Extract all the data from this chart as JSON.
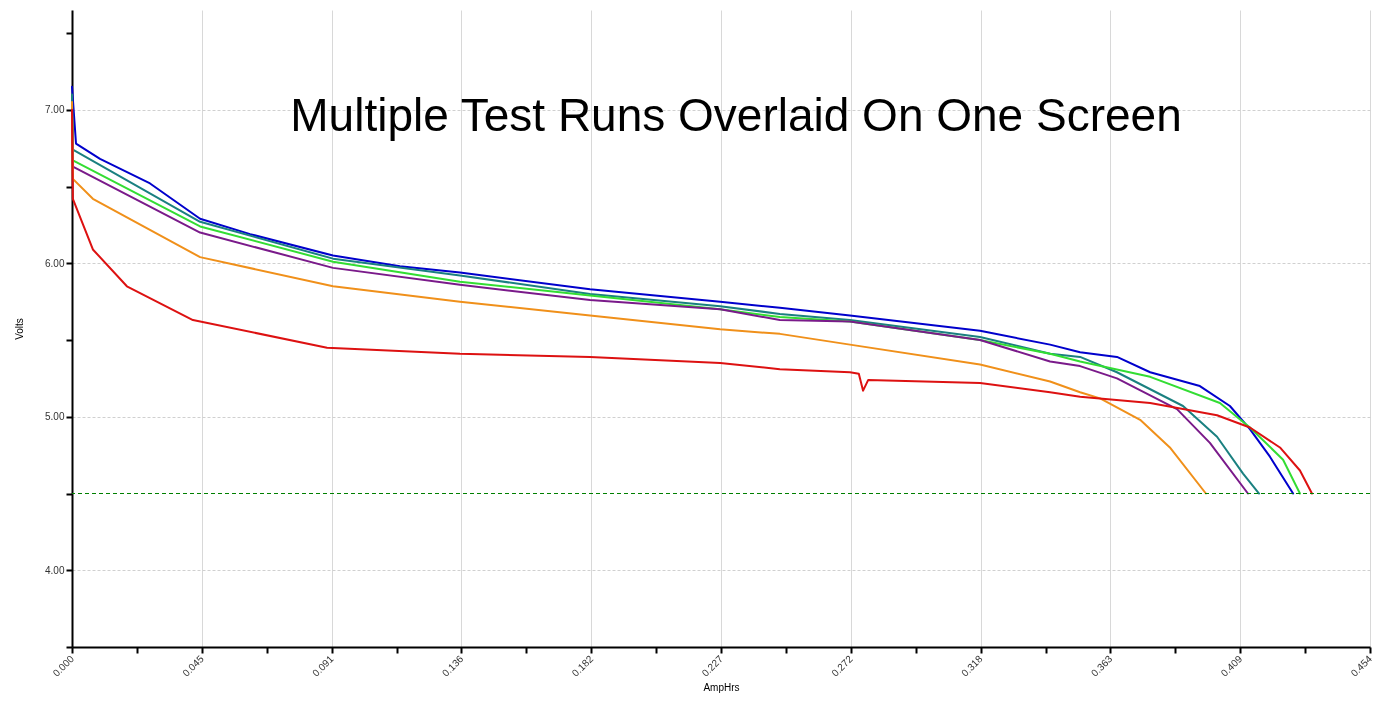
{
  "chart_data": {
    "type": "line",
    "title": "Multiple Test Runs Overlaid On One Screen",
    "xlabel": "AmpHrs",
    "ylabel": "Volts",
    "xlim": [
      0,
      0.454
    ],
    "ylim": [
      3.5,
      7.65
    ],
    "xticks": [
      {
        "value": 0,
        "label": "0.000"
      },
      {
        "value": 0.0227,
        "label": null
      },
      {
        "value": 0.0454,
        "label": "0.045"
      },
      {
        "value": 0.0681,
        "label": null
      },
      {
        "value": 0.0908,
        "label": "0.091"
      },
      {
        "value": 0.1135,
        "label": null
      },
      {
        "value": 0.1362,
        "label": "0.136"
      },
      {
        "value": 0.1589,
        "label": null
      },
      {
        "value": 0.1816,
        "label": "0.182"
      },
      {
        "value": 0.2043,
        "label": null
      },
      {
        "value": 0.227,
        "label": "0.227"
      },
      {
        "value": 0.2497,
        "label": null
      },
      {
        "value": 0.2724,
        "label": "0.272"
      },
      {
        "value": 0.2951,
        "label": null
      },
      {
        "value": 0.3178,
        "label": "0.318"
      },
      {
        "value": 0.3405,
        "label": null
      },
      {
        "value": 0.3632,
        "label": "0.363"
      },
      {
        "value": 0.3859,
        "label": null
      },
      {
        "value": 0.4086,
        "label": "0.409"
      },
      {
        "value": 0.4313,
        "label": null
      },
      {
        "value": 0.454,
        "label": "0.454"
      }
    ],
    "yticks": [
      {
        "value": 3.5,
        "label": null
      },
      {
        "value": 4,
        "label": "4.00"
      },
      {
        "value": 4.5,
        "label": null
      },
      {
        "value": 5,
        "label": "5.00"
      },
      {
        "value": 5.5,
        "label": null
      },
      {
        "value": 6,
        "label": "6.00"
      },
      {
        "value": 6.5,
        "label": null
      },
      {
        "value": 7,
        "label": "7.00"
      },
      {
        "value": 7.5,
        "label": null
      }
    ],
    "grid": true,
    "ref_lines": [
      {
        "axis": "y",
        "value": 4.5,
        "color": "#008000",
        "line_style": "dashed"
      }
    ],
    "series": [
      {
        "color": "#0000cc",
        "x": [
          0,
          0.0014,
          0.0098,
          0.0273,
          0.0448,
          0.0623,
          0.0913,
          0.1147,
          0.1357,
          0.1812,
          0.2267,
          0.2476,
          0.2721,
          0.3176,
          0.3421,
          0.3526,
          0.3655,
          0.3771,
          0.3945,
          0.405,
          0.412,
          0.419,
          0.4271
        ],
        "values": [
          7.15,
          6.78,
          6.68,
          6.52,
          6.29,
          6.19,
          6.05,
          5.98,
          5.94,
          5.83,
          5.75,
          5.71,
          5.66,
          5.56,
          5.47,
          5.42,
          5.39,
          5.29,
          5.2,
          5.07,
          4.92,
          4.74,
          4.5
        ]
      },
      {
        "color": "#1a8080",
        "x": [
          0,
          0.0003,
          0.0448,
          0.0913,
          0.1357,
          0.1812,
          0.2267,
          0.2476,
          0.2721,
          0.3176,
          0.3421,
          0.3526,
          0.3655,
          0.3886,
          0.4005,
          0.4096,
          0.4152
        ],
        "values": [
          7.1,
          6.74,
          6.27,
          6.03,
          5.92,
          5.8,
          5.72,
          5.67,
          5.63,
          5.52,
          5.41,
          5.39,
          5.29,
          5.07,
          4.87,
          4.63,
          4.5
        ]
      },
      {
        "color": "#33dd33",
        "x": [
          0,
          0.0003,
          0.0448,
          0.0913,
          0.1357,
          0.1812,
          0.2267,
          0.2476,
          0.2721,
          0.3176,
          0.3421,
          0.3526,
          0.3771,
          0.4015,
          0.412,
          0.4236,
          0.4295
        ],
        "values": [
          7.0,
          6.67,
          6.24,
          6.01,
          5.88,
          5.79,
          5.7,
          5.65,
          5.62,
          5.5,
          5.41,
          5.36,
          5.26,
          5.09,
          4.93,
          4.72,
          4.5
        ]
      },
      {
        "color": "#7a1a8a",
        "x": [
          0,
          0.0003,
          0.0448,
          0.0913,
          0.1357,
          0.1812,
          0.2267,
          0.2476,
          0.2721,
          0.3176,
          0.3421,
          0.3526,
          0.3655,
          0.3865,
          0.398,
          0.4113
        ],
        "values": [
          6.9,
          6.63,
          6.2,
          5.97,
          5.86,
          5.76,
          5.7,
          5.63,
          5.62,
          5.5,
          5.36,
          5.33,
          5.25,
          5.05,
          4.83,
          4.5
        ]
      },
      {
        "color": "#f0901a",
        "x": [
          0,
          0.0003,
          0.0073,
          0.0448,
          0.0913,
          0.1357,
          0.1812,
          0.2267,
          0.2476,
          0.2721,
          0.3176,
          0.3421,
          0.3526,
          0.3596,
          0.3736,
          0.384,
          0.3966
        ],
        "values": [
          7.05,
          6.55,
          6.42,
          6.04,
          5.85,
          5.75,
          5.66,
          5.57,
          5.54,
          5.47,
          5.34,
          5.23,
          5.16,
          5.12,
          4.98,
          4.8,
          4.5
        ]
      },
      {
        "color": "#dd1111",
        "x": [
          0,
          0.0003,
          0.0073,
          0.0192,
          0.0423,
          0.0892,
          0.1357,
          0.1812,
          0.2267,
          0.2476,
          0.2721,
          0.2752,
          0.2767,
          0.2785,
          0.3176,
          0.3421,
          0.3526,
          0.3771,
          0.4005,
          0.412,
          0.4225,
          0.4295,
          0.4337
        ],
        "values": [
          7.0,
          6.42,
          6.09,
          5.85,
          5.63,
          5.45,
          5.41,
          5.39,
          5.35,
          5.31,
          5.29,
          5.28,
          5.17,
          5.24,
          5.22,
          5.16,
          5.13,
          5.09,
          5.01,
          4.93,
          4.8,
          4.65,
          4.5
        ]
      }
    ]
  }
}
